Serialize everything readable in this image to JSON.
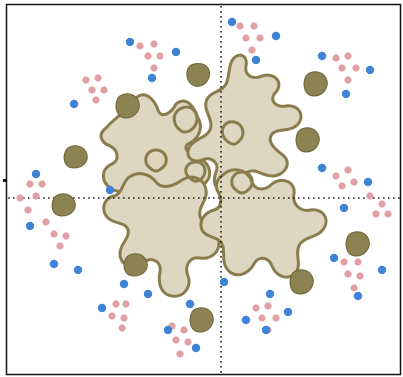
{
  "colors": {
    "background": "#ffffff",
    "frame": "#111111",
    "guide": "#222222",
    "blob_fill": "#ded6c0",
    "blob_stroke": "#8a7c4c",
    "pebble": "#8c8252",
    "pebble_dark": "#6f6538",
    "pink_dot": "#e0a0a4",
    "blue_dot": "#3f83d6"
  },
  "legend": {
    "pebble": "olive-pebble-icon",
    "pink": "pink-dot-cluster",
    "blue": "blue-dot"
  }
}
